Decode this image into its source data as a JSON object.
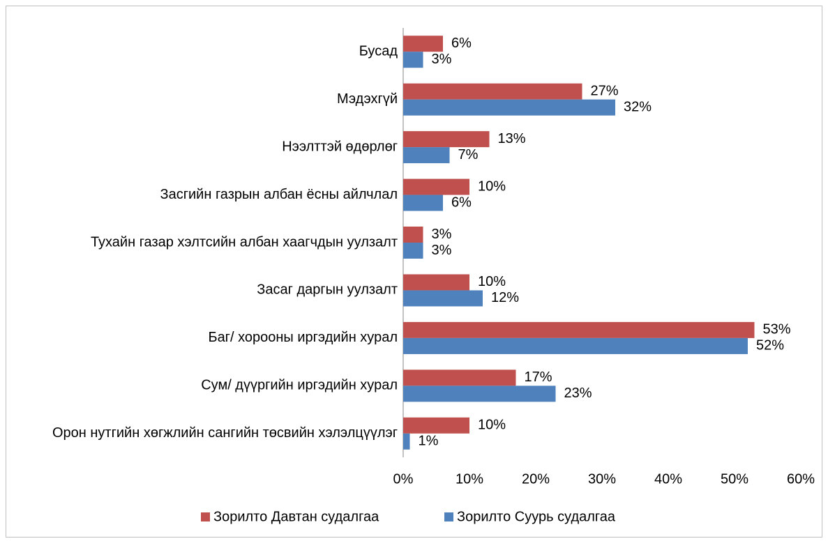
{
  "chart_data": {
    "type": "hbar",
    "categories": [
      "Бусад",
      "Мэдэхгүй",
      "Нээлттэй өдөрлөг",
      "Засгийн газрын албан ёсны айлчлал",
      "Тухайн газар хэлтсийн албан хаагчдын уулзалт",
      "Засаг даргын уулзалт",
      "Баг/ хорооны иргэдийн хурал",
      "Сум/ дүүргийн иргэдийн хурал",
      "Орон нутгийн хөгжлийн сангийн төсвийн хэлэлцүүлэг"
    ],
    "series": [
      {
        "name": "Зорилто Давтан судалгаа",
        "color": "#c0504d",
        "values": [
          6,
          27,
          13,
          10,
          3,
          10,
          53,
          17,
          10
        ],
        "value_labels": [
          "6%",
          "27%",
          "13%",
          "10%",
          "3%",
          "10%",
          "53%",
          "17%",
          "10%"
        ]
      },
      {
        "name": "Зорилто Суурь судалгаа",
        "color": "#4f81bd",
        "values": [
          3,
          32,
          7,
          6,
          3,
          12,
          52,
          23,
          1
        ],
        "value_labels": [
          "3%",
          "32%",
          "7%",
          "6%",
          "3%",
          "12%",
          "52%",
          "23%",
          "1%"
        ]
      }
    ],
    "xlim": [
      0,
      60
    ],
    "xticks": [
      {
        "value": 0,
        "label": "0%"
      },
      {
        "value": 10,
        "label": "10%"
      },
      {
        "value": 20,
        "label": "20%"
      },
      {
        "value": 30,
        "label": "30%"
      },
      {
        "value": 40,
        "label": "40%"
      },
      {
        "value": 50,
        "label": "50%"
      },
      {
        "value": 60,
        "label": "60%"
      }
    ],
    "legend": "bottom",
    "grid": false
  }
}
